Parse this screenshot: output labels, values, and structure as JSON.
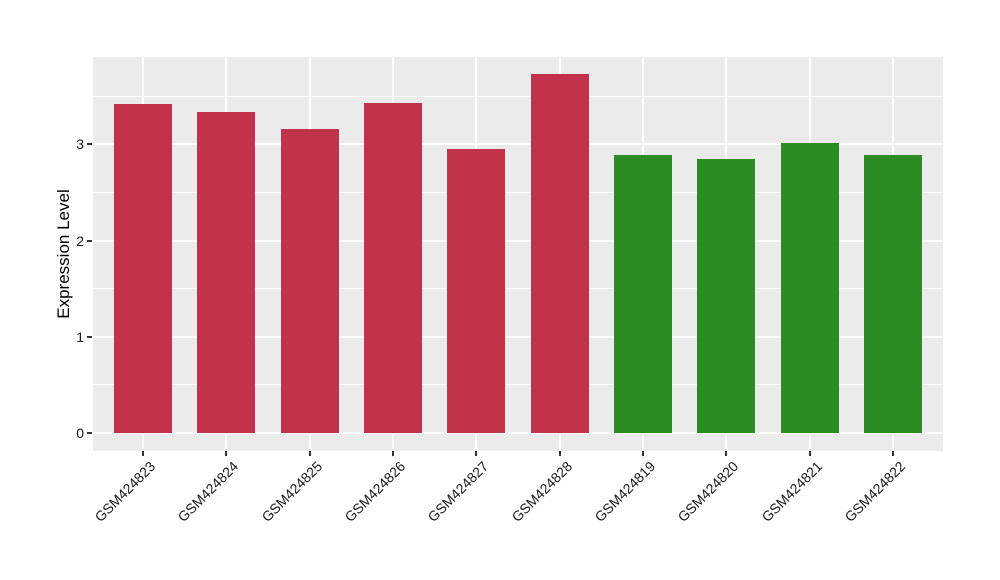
{
  "chart_data": {
    "type": "bar",
    "title": "",
    "xlabel": "",
    "ylabel": "Expression Level",
    "categories": [
      "GSM424823",
      "GSM424824",
      "GSM424825",
      "GSM424826",
      "GSM424827",
      "GSM424828",
      "GSM424819",
      "GSM424820",
      "GSM424821",
      "GSM424822"
    ],
    "values": [
      3.42,
      3.34,
      3.16,
      3.43,
      2.95,
      3.73,
      2.89,
      2.85,
      3.02,
      2.89
    ],
    "bar_groups": [
      "group1",
      "group1",
      "group1",
      "group1",
      "group1",
      "group1",
      "group2",
      "group2",
      "group2",
      "group2"
    ],
    "group_colors": {
      "group1": "#C3324B",
      "group2": "#2A8C23"
    },
    "ylim": [
      -0.19,
      3.91
    ],
    "yticks": [
      0,
      1,
      2,
      3
    ],
    "ytick_labels": [
      "0",
      "1",
      "2",
      "3"
    ],
    "yticks_minor": [
      0.5,
      1.5,
      2.5,
      3.5
    ],
    "grid": true,
    "legend_position": "none",
    "panel_bg": "#EBEBEB",
    "grid_color": "#FFFFFF",
    "tick_mark_color": "#333333",
    "text_color": "#1A1A1A",
    "bar_width_fraction": 0.7,
    "category_expansion": 0.6
  }
}
